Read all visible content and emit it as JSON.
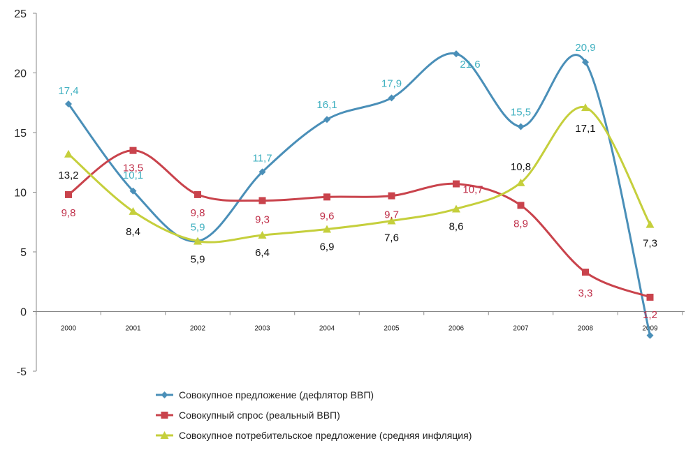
{
  "chart_data": {
    "type": "line",
    "categories": [
      "2000",
      "2001",
      "2002",
      "2003",
      "2004",
      "2005",
      "2006",
      "2007",
      "2008",
      "2009"
    ],
    "ylim": [
      -5,
      25
    ],
    "yticks": [
      "-5",
      "0",
      "5",
      "10",
      "15",
      "20",
      "25"
    ],
    "grid": false,
    "legend_position": "bottom-left",
    "series": [
      {
        "name": "Совокупное предложение (дефлятор ВВП)",
        "color": "#4a8fb8",
        "label_color": "#3fb0c0",
        "marker": "diamond",
        "values": [
          17.4,
          10.1,
          5.9,
          11.7,
          16.1,
          17.9,
          21.6,
          15.5,
          20.9,
          -2.0
        ],
        "labels": [
          "17,4",
          "10,1",
          "5,9",
          "11,7",
          "16,1",
          "17,9",
          "21,6",
          "15,5",
          "20,9",
          ""
        ]
      },
      {
        "name": "Совокупный спрос (реальный ВВП)",
        "color": "#c9434c",
        "label_color": "#c0304a",
        "marker": "square",
        "values": [
          9.8,
          13.5,
          9.8,
          9.3,
          9.6,
          9.7,
          10.7,
          8.9,
          3.3,
          1.2
        ],
        "labels": [
          "9,8",
          "13,5",
          "9,8",
          "9,3",
          "9,6",
          "9,7",
          "10,7",
          "8,9",
          "3,3",
          "1,2"
        ]
      },
      {
        "name": "Совокупное потребительское предложение (средняя инфляция)",
        "color": "#c5cf3c",
        "label_color": "#111111",
        "marker": "triangle",
        "values": [
          13.2,
          8.4,
          5.9,
          6.4,
          6.9,
          7.6,
          8.6,
          10.8,
          17.1,
          7.3
        ],
        "labels": [
          "13,2",
          "8,4",
          "5,9",
          "6,4",
          "6,9",
          "7,6",
          "8,6",
          "10,8",
          "17,1",
          "7,3"
        ]
      }
    ]
  }
}
